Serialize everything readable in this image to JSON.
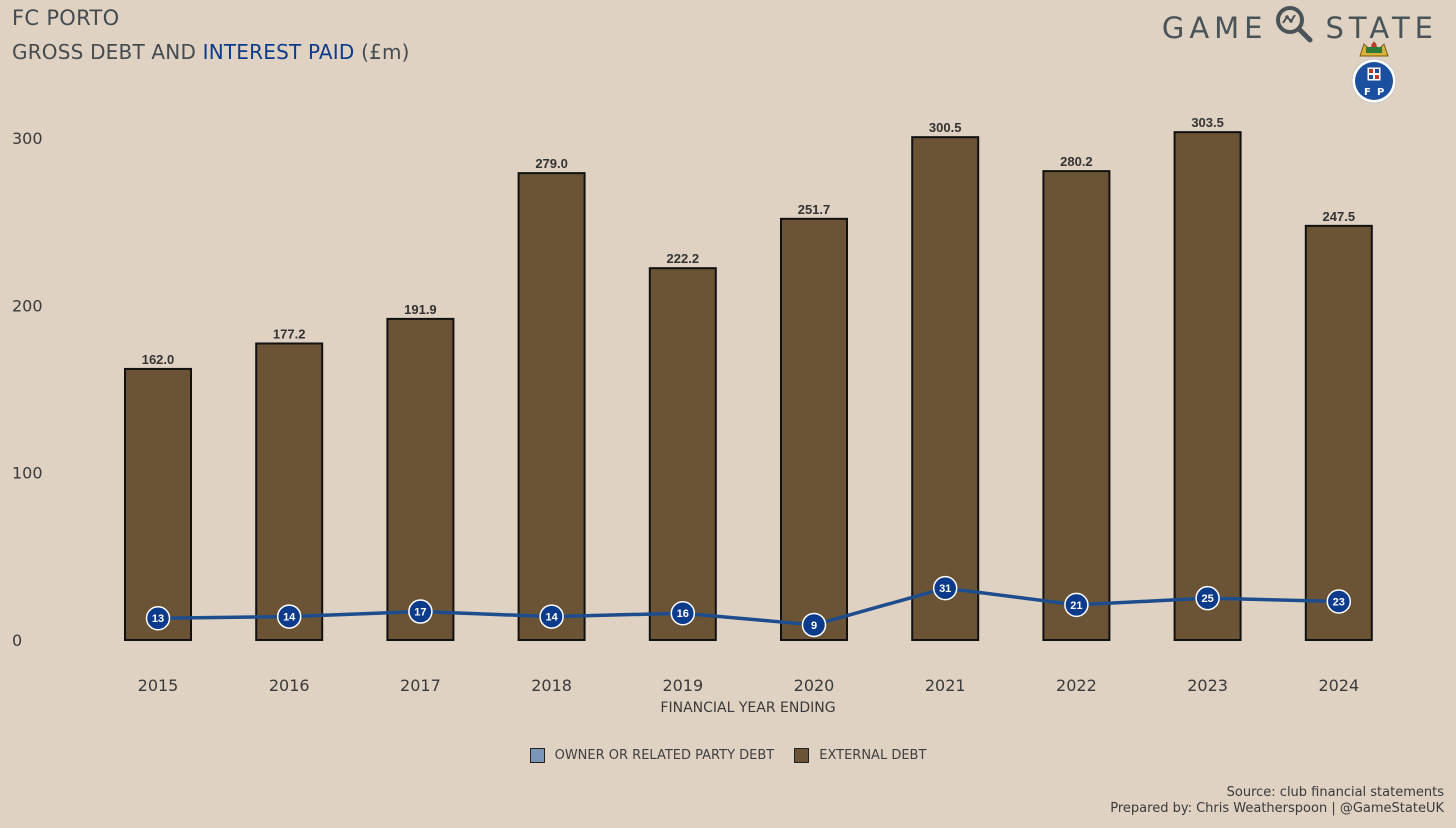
{
  "header": {
    "title": "FC PORTO",
    "subtitle_part1": "GROSS DEBT AND ",
    "subtitle_accent": "INTEREST PAID",
    "subtitle_part2": " (£m)",
    "brand_left": "GAME",
    "brand_right": "STATE"
  },
  "colors": {
    "background": "#dfd2c3",
    "external_debt": "#6b5436",
    "owner_debt": "#7b95b8",
    "interest_line": "#1e4d8e",
    "interest_marker": "#0d3b8c",
    "accent": "#0d3b8c"
  },
  "chart_data": {
    "type": "bar",
    "categories": [
      "2015",
      "2016",
      "2017",
      "2018",
      "2019",
      "2020",
      "2021",
      "2022",
      "2023",
      "2024"
    ],
    "series": [
      {
        "name": "OWNER OR RELATED PARTY DEBT",
        "values": [
          0,
          0,
          0,
          0,
          0,
          0,
          0,
          0,
          0,
          0
        ]
      },
      {
        "name": "EXTERNAL DEBT",
        "values": [
          162.0,
          177.2,
          191.9,
          279.0,
          222.2,
          251.7,
          300.5,
          280.2,
          303.5,
          247.5
        ]
      }
    ],
    "bar_labels": [
      "162.0",
      "177.2",
      "191.9",
      "279.0",
      "222.2",
      "251.7",
      "300.5",
      "280.2",
      "303.5",
      "247.5"
    ],
    "line_series": {
      "values": [
        13,
        14,
        17,
        14,
        16,
        9,
        31,
        21,
        25,
        23
      ]
    },
    "xlabel": "FINANCIAL YEAR ENDING",
    "ylabel": "",
    "ylim": [
      0,
      300
    ],
    "yticks": [
      "0",
      "100",
      "200",
      "300"
    ],
    "grid": false,
    "legend_position": "bottom-center"
  },
  "legend": {
    "items": [
      {
        "label": "OWNER OR RELATED PARTY DEBT",
        "color": "#7b95b8"
      },
      {
        "label": "EXTERNAL DEBT",
        "color": "#6b5436"
      }
    ]
  },
  "footer": {
    "source": "Source: club financial statements",
    "prepared": "Prepared by: Chris Weatherspoon | @GameStateUK"
  }
}
